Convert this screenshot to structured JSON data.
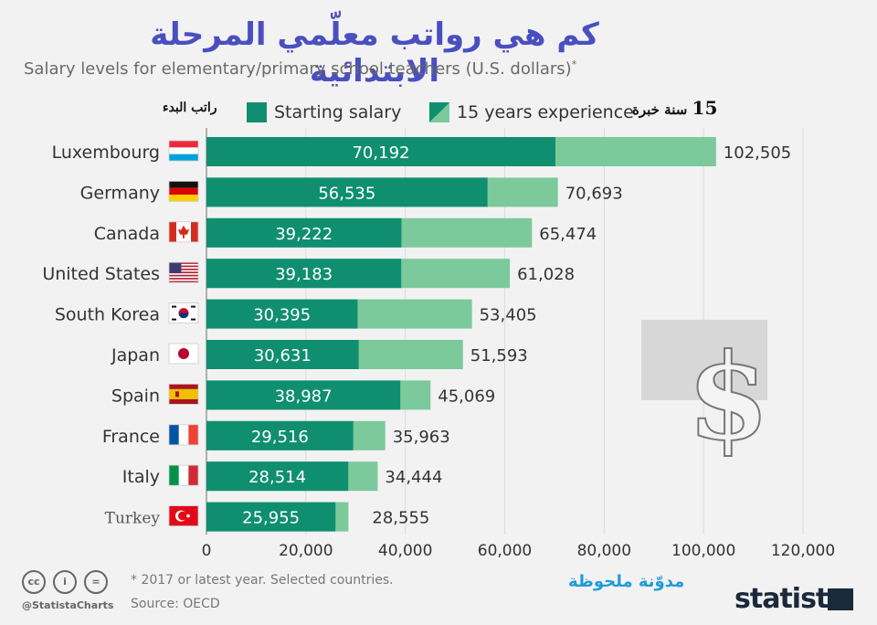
{
  "title_ar": "كم هي رواتب معلّمي المرحلة الابتدائية",
  "subtitle": "Salary levels for elementary/primary school teachers (U.S. dollars)",
  "subtitle_mark": "*",
  "legend": {
    "ar_start": "راتب البدء",
    "start_label": "Starting salary",
    "exp_label": "15 years experience",
    "ar_exp_num": "15",
    "ar_exp_text": "سنة خبرة"
  },
  "colors": {
    "start": "#0f8f6f",
    "exp": "#7cc99c",
    "axis": "#999999",
    "grid": "#dcdcdc",
    "background": "#f2f2f2"
  },
  "chart_data": {
    "type": "bar",
    "orientation": "horizontal",
    "categories": [
      "Luxembourg",
      "Germany",
      "Canada",
      "United States",
      "South Korea",
      "Japan",
      "Spain",
      "France",
      "Italy",
      "Turkey"
    ],
    "series": [
      {
        "name": "Starting salary",
        "values": [
          70192,
          56535,
          39222,
          39183,
          30395,
          30631,
          38987,
          29516,
          28514,
          25955
        ]
      },
      {
        "name": "15 years experience",
        "values": [
          102505,
          70693,
          65474,
          61028,
          53405,
          51593,
          45069,
          35963,
          34444,
          28555
        ]
      }
    ],
    "start_labels": [
      "70,192",
      "56,535",
      "39,222",
      "39,183",
      "30,395",
      "30,631",
      "38,987",
      "29,516",
      "28,514",
      "25,955"
    ],
    "exp_labels": [
      "102,505",
      "70,693",
      "65,474",
      "61,028",
      "53,405",
      "51,593",
      "45,069",
      "35,963",
      "34,444",
      "28,555"
    ],
    "xlim": [
      0,
      120000
    ],
    "xticks": [
      0,
      20000,
      40000,
      60000,
      80000,
      100000,
      120000
    ],
    "xtick_labels": [
      "0",
      "20,000",
      "40,000",
      "60,000",
      "80,000",
      "100,000",
      "120,000"
    ],
    "flags": [
      "luxembourg-flag",
      "germany-flag",
      "canada-flag",
      "us-flag",
      "south-korea-flag",
      "japan-flag",
      "spain-flag",
      "france-flag",
      "italy-flag",
      "turkey-flag"
    ],
    "grid": true,
    "legend_position": "top"
  },
  "footer": {
    "footnote": "* 2017 or latest year. Selected countries.",
    "source": "Source: OECD",
    "handle": "@StatistaCharts",
    "cc_icons": [
      "cc",
      "i",
      "="
    ],
    "blog_ar": "مدوّنة ملحوظة",
    "brand": "statista",
    "dollar": "$"
  }
}
